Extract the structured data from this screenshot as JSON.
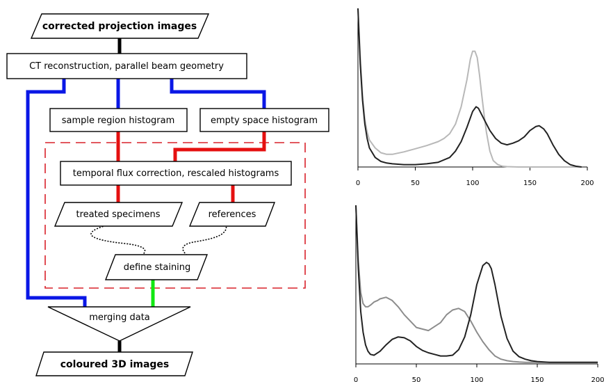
{
  "flowchart": {
    "input_label": "corrected projection images",
    "reconstruction_label": "CT reconstruction, parallel beam geometry",
    "sample_hist_label": "sample region histogram",
    "empty_hist_label": "empty space histogram",
    "flux_label": "temporal flux correction, rescaled histograms",
    "treated_label": "treated specimens",
    "references_label": "references",
    "staining_label": "define staining",
    "merging_label": "merging data",
    "output_label": "coloured 3D images",
    "colors": {
      "blue_path": "#0a17e6",
      "red_path": "#e51010",
      "green_path": "#12e812",
      "dashed_frame": "#d9202a"
    }
  },
  "chart_data": [
    {
      "type": "line",
      "xlim": [
        0,
        200
      ],
      "xticks": [
        0,
        50,
        100,
        150,
        200
      ],
      "tick_labels": [
        "0",
        "50",
        "100",
        "150",
        "200"
      ],
      "grid": false,
      "series": [
        {
          "color": "#b8b8b8",
          "x": [
            0,
            2,
            4,
            6,
            8,
            10,
            15,
            20,
            25,
            30,
            40,
            50,
            60,
            70,
            75,
            80,
            85,
            90,
            95,
            98,
            100,
            102,
            104,
            106,
            108,
            110,
            112,
            115,
            118,
            122,
            126,
            130,
            140,
            150,
            160,
            170,
            180,
            195
          ],
          "y": [
            100,
            70,
            45,
            30,
            22,
            17,
            12,
            9,
            8,
            8,
            9.5,
            11.5,
            13.5,
            16,
            18,
            21,
            27,
            38,
            55,
            68,
            73,
            73,
            69,
            58,
            45,
            33,
            22,
            10,
            4,
            1.5,
            0.5,
            0.2,
            0,
            0,
            0,
            0,
            0,
            0
          ]
        },
        {
          "color": "#222222",
          "x": [
            0,
            2,
            4,
            6,
            8,
            10,
            15,
            20,
            25,
            30,
            40,
            50,
            60,
            70,
            80,
            85,
            90,
            95,
            100,
            103,
            105,
            110,
            115,
            120,
            125,
            130,
            135,
            140,
            145,
            150,
            155,
            158,
            162,
            165,
            170,
            175,
            180,
            185,
            190,
            195
          ],
          "y": [
            100,
            65,
            42,
            27,
            18,
            12,
            6,
            3.5,
            2.5,
            2,
            1.5,
            1.5,
            2,
            3,
            6,
            10,
            16,
            25,
            35,
            38,
            37,
            30,
            23,
            18,
            15,
            14,
            15,
            16.5,
            19,
            23,
            25.5,
            26,
            24,
            21,
            14,
            8,
            4,
            1.5,
            0.5,
            0
          ]
        }
      ]
    },
    {
      "type": "line",
      "xlim": [
        0,
        200
      ],
      "xticks": [
        0,
        50,
        100,
        150,
        200
      ],
      "tick_labels": [
        "0",
        "50",
        "100",
        "150",
        "200"
      ],
      "grid": false,
      "series": [
        {
          "color": "#8c8c8c",
          "x": [
            0,
            2,
            4,
            6,
            8,
            10,
            12,
            15,
            18,
            20,
            25,
            30,
            35,
            40,
            50,
            60,
            70,
            75,
            80,
            85,
            90,
            95,
            100,
            105,
            110,
            115,
            120,
            125,
            130,
            135,
            140,
            150,
            160,
            170,
            180,
            190,
            200
          ],
          "y": [
            100,
            65,
            45,
            38,
            36,
            36,
            37,
            39,
            40,
            41,
            42,
            40,
            36,
            31,
            23,
            21,
            26,
            31,
            34,
            35,
            33,
            27,
            20,
            14,
            9,
            5,
            3,
            2,
            1.5,
            1.2,
            1,
            1,
            1,
            1,
            1,
            1,
            1
          ]
        },
        {
          "color": "#222222",
          "x": [
            0,
            2,
            4,
            6,
            8,
            10,
            12,
            15,
            20,
            25,
            30,
            35,
            40,
            45,
            50,
            55,
            60,
            65,
            70,
            75,
            80,
            85,
            90,
            95,
            100,
            105,
            108,
            110,
            112,
            115,
            118,
            120,
            125,
            130,
            135,
            140,
            145,
            150,
            160,
            170,
            180,
            190,
            200
          ],
          "y": [
            100,
            60,
            33,
            20,
            12,
            8,
            6,
            5.5,
            8,
            12,
            15.5,
            17,
            16.5,
            14.5,
            11,
            8.5,
            7,
            6,
            5,
            5,
            5.5,
            9,
            17,
            31,
            50,
            62,
            64,
            63,
            60,
            50,
            38,
            30,
            16,
            8,
            4.5,
            3,
            2,
            1.5,
            1,
            1,
            1,
            1,
            1
          ]
        }
      ]
    }
  ]
}
